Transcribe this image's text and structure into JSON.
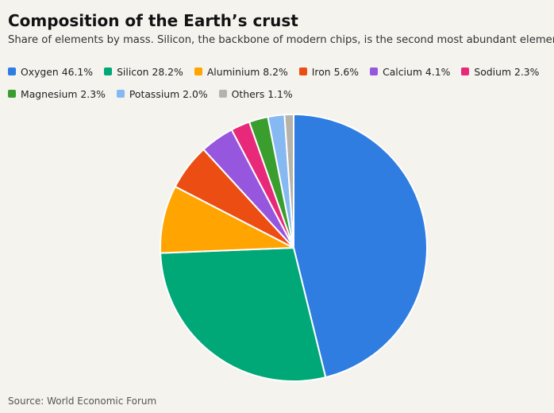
{
  "chart_data": {
    "type": "pie",
    "title": "Composition of the Earth’s crust",
    "subtitle": "Share of elements by mass. Silicon, the backbone of modern chips, is the second most abundant element.",
    "source": "Source: World Economic Forum",
    "legend_placement": "top-left",
    "slices": [
      {
        "name": "Oxygen",
        "value": 46.1,
        "label": "Oxygen 46.1%",
        "color": "#2f7de1"
      },
      {
        "name": "Silicon",
        "value": 28.2,
        "label": "Silicon 28.2%",
        "color": "#00a878"
      },
      {
        "name": "Aluminium",
        "value": 8.2,
        "label": "Aluminium 8.2%",
        "color": "#ffa400"
      },
      {
        "name": "Iron",
        "value": 5.6,
        "label": "Iron 5.6%",
        "color": "#ec4d13"
      },
      {
        "name": "Calcium",
        "value": 4.1,
        "label": "Calcium 4.1%",
        "color": "#9657de"
      },
      {
        "name": "Sodium",
        "value": 2.3,
        "label": "Sodium 2.3%",
        "color": "#e8297a"
      },
      {
        "name": "Magnesium",
        "value": 2.3,
        "label": "Magnesium 2.3%",
        "color": "#3a9e2f"
      },
      {
        "name": "Potassium",
        "value": 2.0,
        "label": "Potassium 2.0%",
        "color": "#86b8f2"
      },
      {
        "name": "Others",
        "value": 1.1,
        "label": "Others 1.1%",
        "color": "#b5b3aa"
      }
    ]
  }
}
